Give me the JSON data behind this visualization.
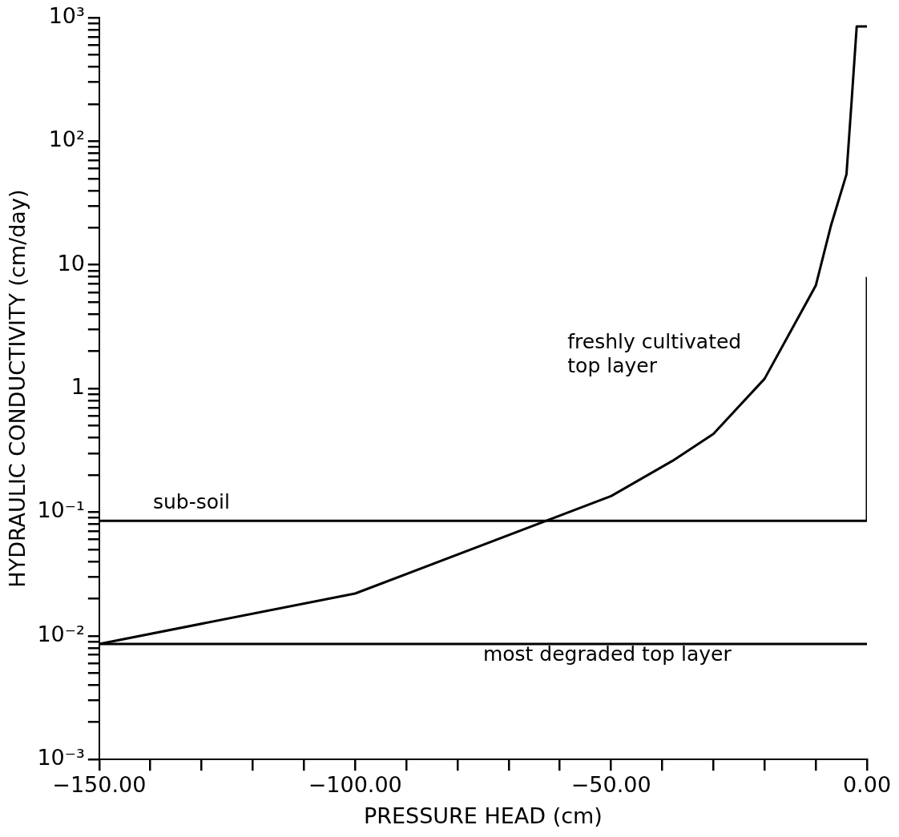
{
  "chart_data": {
    "type": "line",
    "xlabel": "PRESSURE HEAD (cm)",
    "ylabel": "HYDRAULIC CONDUCTIVITY (cm/day)",
    "series": [
      {
        "name": "freshly cultivated\ntop layer",
        "color": "#000000",
        "x": [
          -150,
          -100,
          -50,
          -38,
          -30,
          -20,
          -10,
          -7,
          -4,
          -3,
          -2,
          0
        ],
        "values": [
          0.0086,
          0.022,
          0.135,
          0.26,
          0.43,
          1.2,
          6.8,
          21,
          54,
          210,
          850,
          850
        ]
      },
      {
        "name": "sub-soil",
        "color": "#000000",
        "x": [
          -150,
          0,
          0
        ],
        "values": [
          0.085,
          0.085,
          8
        ]
      },
      {
        "name": "most degraded top layer",
        "color": "#000000",
        "x": [
          -150,
          0
        ],
        "values": [
          0.0086,
          0.0086
        ]
      }
    ],
    "log": "y",
    "xlim": [
      -150,
      0
    ],
    "ylim": [
      0.001,
      1000
    ],
    "xticks": [
      {
        "value": -150,
        "label": "−150.00"
      },
      {
        "value": -140,
        "label": null
      },
      {
        "value": -130,
        "label": null
      },
      {
        "value": -120,
        "label": null
      },
      {
        "value": -110,
        "label": null
      },
      {
        "value": -100,
        "label": "−100.00"
      },
      {
        "value": -90,
        "label": null
      },
      {
        "value": -80,
        "label": null
      },
      {
        "value": -70,
        "label": null
      },
      {
        "value": -60,
        "label": null
      },
      {
        "value": -50,
        "label": "−50.00"
      },
      {
        "value": -40,
        "label": null
      },
      {
        "value": -30,
        "label": null
      },
      {
        "value": -20,
        "label": null
      },
      {
        "value": -10,
        "label": null
      },
      {
        "value": 0,
        "label": "0.00"
      }
    ],
    "yticks": [
      {
        "value": 0.001,
        "label": "10⁻³"
      },
      {
        "value": 0.002,
        "label": null
      },
      {
        "value": 0.003,
        "label": null
      },
      {
        "value": 0.004,
        "label": null
      },
      {
        "value": 0.005,
        "label": null
      },
      {
        "value": 0.006,
        "label": null
      },
      {
        "value": 0.007,
        "label": null
      },
      {
        "value": 0.008,
        "label": null
      },
      {
        "value": 0.009,
        "label": null
      },
      {
        "value": 0.01,
        "label": "10⁻²"
      },
      {
        "value": 0.02,
        "label": null
      },
      {
        "value": 0.03,
        "label": null
      },
      {
        "value": 0.04,
        "label": null
      },
      {
        "value": 0.05,
        "label": null
      },
      {
        "value": 0.06,
        "label": null
      },
      {
        "value": 0.07,
        "label": null
      },
      {
        "value": 0.08,
        "label": null
      },
      {
        "value": 0.09,
        "label": null
      },
      {
        "value": 0.1,
        "label": "10⁻¹"
      },
      {
        "value": 0.2,
        "label": null
      },
      {
        "value": 0.3,
        "label": null
      },
      {
        "value": 0.4,
        "label": null
      },
      {
        "value": 0.5,
        "label": null
      },
      {
        "value": 0.6,
        "label": null
      },
      {
        "value": 0.7,
        "label": null
      },
      {
        "value": 0.8,
        "label": null
      },
      {
        "value": 0.9,
        "label": null
      },
      {
        "value": 1,
        "label": "1"
      },
      {
        "value": 2,
        "label": null
      },
      {
        "value": 3,
        "label": null
      },
      {
        "value": 4,
        "label": null
      },
      {
        "value": 5,
        "label": null
      },
      {
        "value": 6,
        "label": null
      },
      {
        "value": 7,
        "label": null
      },
      {
        "value": 8,
        "label": null
      },
      {
        "value": 9,
        "label": null
      },
      {
        "value": 10,
        "label": "10"
      },
      {
        "value": 20,
        "label": null
      },
      {
        "value": 30,
        "label": null
      },
      {
        "value": 40,
        "label": null
      },
      {
        "value": 50,
        "label": null
      },
      {
        "value": 60,
        "label": null
      },
      {
        "value": 70,
        "label": null
      },
      {
        "value": 80,
        "label": null
      },
      {
        "value": 90,
        "label": null
      },
      {
        "value": 100,
        "label": "10²"
      },
      {
        "value": 200,
        "label": null
      },
      {
        "value": 300,
        "label": null
      },
      {
        "value": 400,
        "label": null
      },
      {
        "value": 500,
        "label": null
      },
      {
        "value": 600,
        "label": null
      },
      {
        "value": 700,
        "label": null
      },
      {
        "value": 800,
        "label": null
      },
      {
        "value": 900,
        "label": null
      },
      {
        "value": 1000,
        "label": "10³"
      }
    ],
    "grid": false,
    "legend": false,
    "marker": "none",
    "line_style": "solid"
  }
}
